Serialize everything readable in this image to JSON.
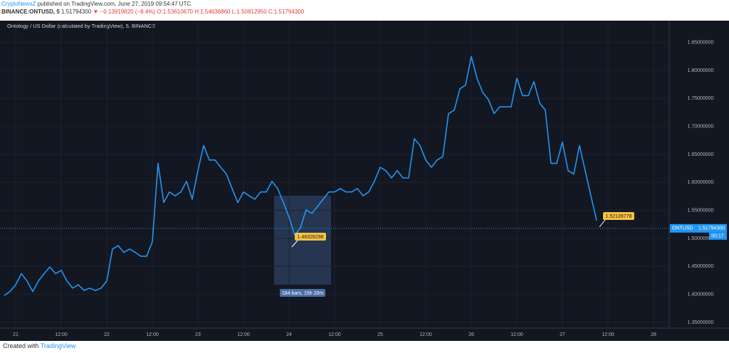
{
  "header": {
    "publisher": "CryptoNewsZ",
    "published": "published on TradingView.com, June 27, 2019 09:54:47 UTC",
    "symbol": "BINANCE:ONTUSD, 5",
    "price": "1.51794300",
    "change": "▼ −0.13919820 (−8.4%)",
    "ohlc": "O:1.53610670 H:1.54636860 L:1.50812950 C:1.51794300"
  },
  "chart_data": {
    "type": "line",
    "title": "Ontology / US Dollar (calculated by TradingView), 5, BINANCE",
    "color": "#2196f3",
    "categories": [
      null,
      null,
      "21",
      null,
      null,
      null,
      null,
      null,
      null,
      null,
      "12:00",
      null,
      null,
      null,
      null,
      null,
      null,
      null,
      "22",
      null,
      null,
      null,
      null,
      null,
      null,
      null,
      "12:00",
      null,
      null,
      null,
      null,
      null,
      null,
      null,
      "23",
      null,
      null,
      null,
      null,
      null,
      null,
      null,
      "12:00",
      null,
      null,
      null,
      null,
      null,
      null,
      null,
      "24",
      null,
      null,
      null,
      null,
      null,
      null,
      null,
      "12:00",
      null,
      null,
      null,
      null,
      null,
      null,
      null,
      "25",
      null,
      null,
      null,
      null,
      null,
      null,
      null,
      "12:00",
      null,
      null,
      null,
      null,
      null,
      null,
      null,
      "26",
      null,
      null,
      null,
      null,
      null,
      null,
      null,
      "12:00",
      null,
      null,
      null,
      null,
      null,
      null,
      null,
      "27",
      null,
      null,
      null,
      null,
      null,
      null,
      null,
      "12:00",
      null,
      null,
      null,
      null,
      null,
      null,
      null,
      "28"
    ],
    "values": [
      1.398,
      1.405,
      1.417,
      1.437,
      1.424,
      1.405,
      1.424,
      1.437,
      1.449,
      1.437,
      1.443,
      1.424,
      1.411,
      1.417,
      1.407,
      1.411,
      1.407,
      1.411,
      1.424,
      1.481,
      1.487,
      1.475,
      1.481,
      1.475,
      1.468,
      1.468,
      1.494,
      1.634,
      1.564,
      1.583,
      1.576,
      1.583,
      1.602,
      1.57,
      1.621,
      1.666,
      1.64,
      1.64,
      1.627,
      1.615,
      1.589,
      1.564,
      1.583,
      1.576,
      1.57,
      1.583,
      1.583,
      1.602,
      1.589,
      1.564,
      1.538,
      1.506,
      1.519,
      1.551,
      1.545,
      1.557,
      1.57,
      1.583,
      1.583,
      1.589,
      1.583,
      1.583,
      1.589,
      1.576,
      1.583,
      1.602,
      1.627,
      1.621,
      1.608,
      1.621,
      1.608,
      1.608,
      1.678,
      1.666,
      1.64,
      1.627,
      1.64,
      1.646,
      1.723,
      1.729,
      1.767,
      1.774,
      1.825,
      1.786,
      1.761,
      1.748,
      1.723,
      1.735,
      1.735,
      1.735,
      1.786,
      1.755,
      1.755,
      1.78,
      1.742,
      1.729,
      1.634,
      1.634,
      1.672,
      1.621,
      1.615,
      1.666,
      1.621,
      1.576,
      1.532,
      null,
      null,
      null,
      null,
      null,
      null,
      null,
      null,
      null,
      null
    ],
    "ylim": [
      1.341,
      1.875
    ],
    "yticks": [
      {
        "value": 1.35,
        "label": "1.35000000"
      },
      {
        "value": 1.4,
        "label": "1.40000000"
      },
      {
        "value": 1.45,
        "label": "1.45000000"
      },
      {
        "value": 1.5,
        "label": "1.50000000"
      },
      {
        "value": 1.55,
        "label": "1.55000000"
      },
      {
        "value": 1.6,
        "label": "1.60000000"
      },
      {
        "value": 1.65,
        "label": "1.65000000"
      },
      {
        "value": 1.7,
        "label": "1.70000000"
      },
      {
        "value": 1.75,
        "label": "1.75000000"
      },
      {
        "value": 1.8,
        "label": "1.80000000"
      },
      {
        "value": 1.85,
        "label": "1.85000000"
      }
    ],
    "grid": true,
    "price_line": {
      "symbol": "ONTUSD",
      "value": 1.517943,
      "label": "1.51794300",
      "countdown": "00:17"
    },
    "annotations": [
      "1.48328296",
      "1.52139778",
      "184 bars, 15h 20m"
    ]
  },
  "footer": {
    "created": "Created with",
    "brand": "TradingView"
  }
}
